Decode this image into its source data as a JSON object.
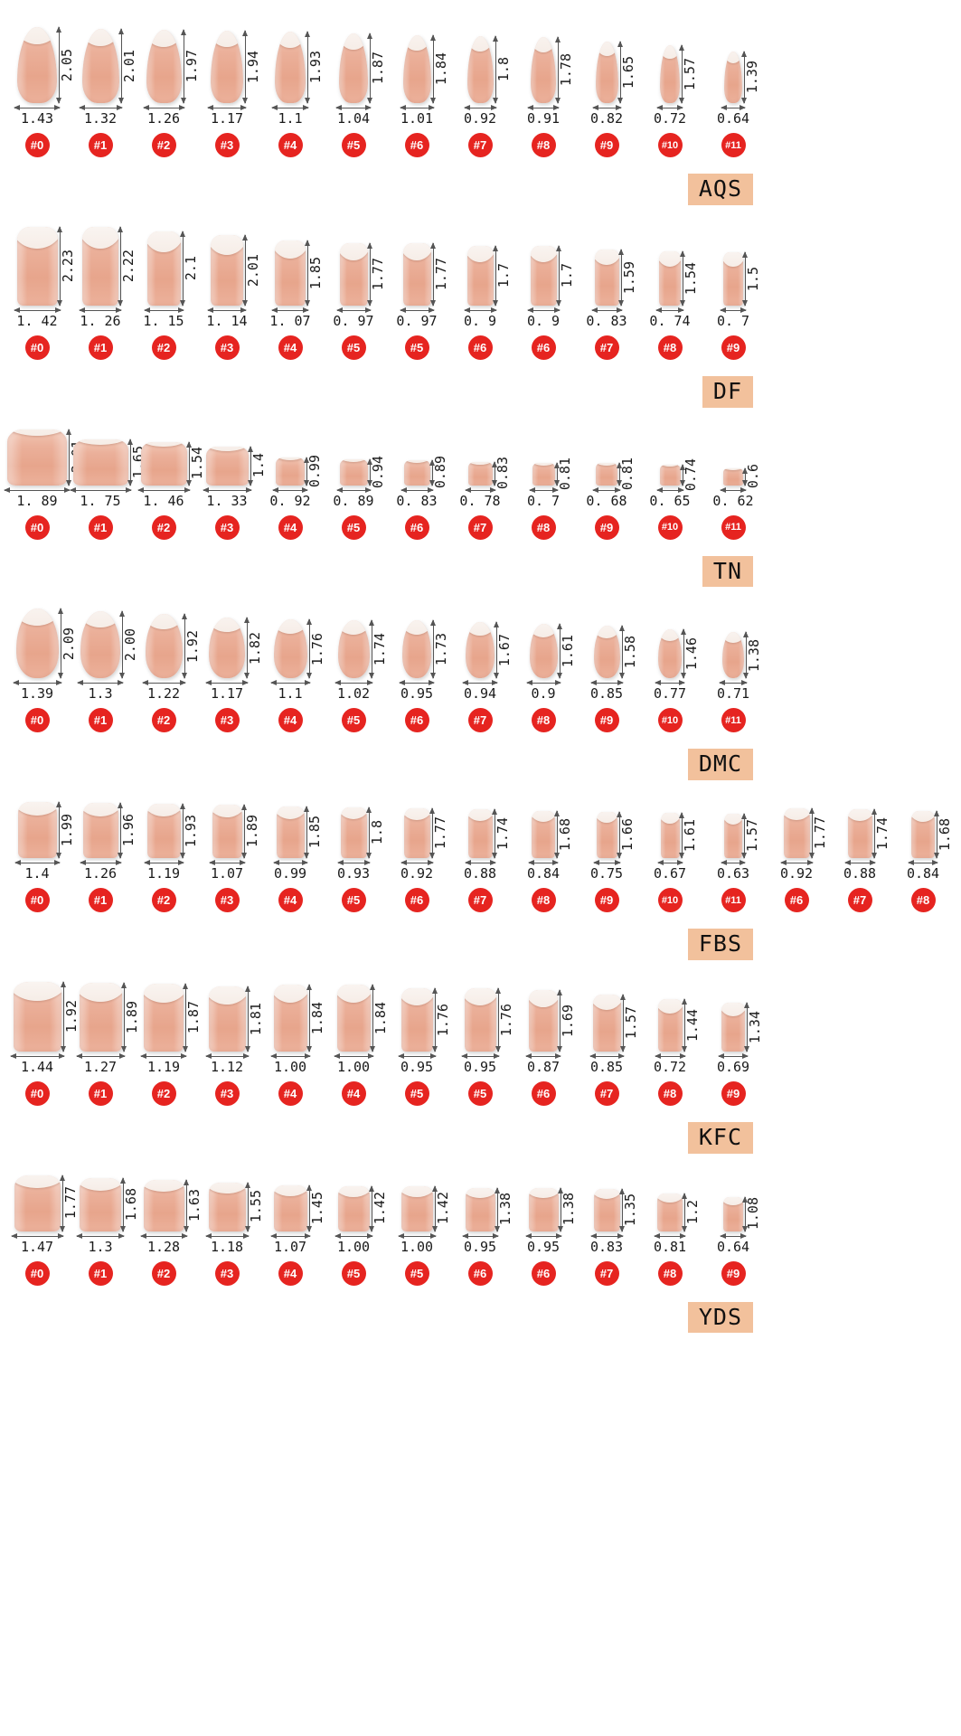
{
  "colors": {
    "badge_red": "#e62420",
    "label_bg": "#f2c19c",
    "nail_body": "#e9a88f",
    "nail_tip": "#ffffff",
    "measure_line": "#555555",
    "text": "#1a1a1a"
  },
  "rows": [
    {
      "label": "AQS",
      "shape": "almond",
      "nails": [
        {
          "h": "2.05",
          "w": "1.43",
          "badge": "#0"
        },
        {
          "h": "2.01",
          "w": "1.32",
          "badge": "#1"
        },
        {
          "h": "1.97",
          "w": "1.26",
          "badge": "#2"
        },
        {
          "h": "1.94",
          "w": "1.17",
          "badge": "#3"
        },
        {
          "h": "1.93",
          "w": "1.1",
          "badge": "#4"
        },
        {
          "h": "1.87",
          "w": "1.04",
          "badge": "#5"
        },
        {
          "h": "1.84",
          "w": "1.01",
          "badge": "#6"
        },
        {
          "h": "1.8",
          "w": "0.92",
          "badge": "#7"
        },
        {
          "h": "1.78",
          "w": "0.91",
          "badge": "#8"
        },
        {
          "h": "1.65",
          "w": "0.82",
          "badge": "#9"
        },
        {
          "h": "1.57",
          "w": "0.72",
          "badge": "#10"
        },
        {
          "h": "1.39",
          "w": "0.64",
          "badge": "#11"
        }
      ]
    },
    {
      "label": "DF",
      "shape": "square",
      "nails": [
        {
          "h": "2.23",
          "w": "1. 42",
          "badge": "#0"
        },
        {
          "h": "2.22",
          "w": "1. 26",
          "badge": "#1"
        },
        {
          "h": "2.1",
          "w": "1. 15",
          "badge": "#2"
        },
        {
          "h": "2.01",
          "w": "1. 14",
          "badge": "#3"
        },
        {
          "h": "1.85",
          "w": "1. 07",
          "badge": "#4"
        },
        {
          "h": "1.77",
          "w": "0. 97",
          "badge": "#5"
        },
        {
          "h": "1.77",
          "w": "0. 97",
          "badge": "#5"
        },
        {
          "h": "1.7",
          "w": "0. 9",
          "badge": "#6"
        },
        {
          "h": "1.7",
          "w": "0. 9",
          "badge": "#6"
        },
        {
          "h": "1.59",
          "w": "0. 83",
          "badge": "#7"
        },
        {
          "h": "1.54",
          "w": "0. 74",
          "badge": "#8"
        },
        {
          "h": "1.5",
          "w": "0. 7",
          "badge": "#9"
        }
      ]
    },
    {
      "label": "TN",
      "shape": "toe",
      "nails": [
        {
          "h": "2.01",
          "w": "1. 89",
          "badge": "#0"
        },
        {
          "h": "1.65",
          "w": "1. 75",
          "badge": "#1"
        },
        {
          "h": "1.54",
          "w": "1. 46",
          "badge": "#2"
        },
        {
          "h": "1.4",
          "w": "1. 33",
          "badge": "#3"
        },
        {
          "h": "0.99",
          "w": "0. 92",
          "badge": "#4"
        },
        {
          "h": "0.94",
          "w": "0. 89",
          "badge": "#5"
        },
        {
          "h": "0.89",
          "w": "0. 83",
          "badge": "#6"
        },
        {
          "h": "0.83",
          "w": "0. 78",
          "badge": "#7"
        },
        {
          "h": "0.81",
          "w": "0. 7",
          "badge": "#8"
        },
        {
          "h": "0.81",
          "w": "0. 68",
          "badge": "#9"
        },
        {
          "h": "0.74",
          "w": "0. 65",
          "badge": "#10"
        },
        {
          "h": "0.6",
          "w": "0. 62",
          "badge": "#11"
        }
      ]
    },
    {
      "label": "DMC",
      "shape": "oval",
      "nails": [
        {
          "h": "2.09",
          "w": "1.39",
          "badge": "#0"
        },
        {
          "h": "2.00",
          "w": "1.3",
          "badge": "#1"
        },
        {
          "h": "1.92",
          "w": "1.22",
          "badge": "#2"
        },
        {
          "h": "1.82",
          "w": "1.17",
          "badge": "#3"
        },
        {
          "h": "1.76",
          "w": "1.1",
          "badge": "#4"
        },
        {
          "h": "1.74",
          "w": "1.02",
          "badge": "#5"
        },
        {
          "h": "1.73",
          "w": "0.95",
          "badge": "#6"
        },
        {
          "h": "1.67",
          "w": "0.94",
          "badge": "#7"
        },
        {
          "h": "1.61",
          "w": "0.9",
          "badge": "#8"
        },
        {
          "h": "1.58",
          "w": "0.85",
          "badge": "#9"
        },
        {
          "h": "1.46",
          "w": "0.77",
          "badge": "#10"
        },
        {
          "h": "1.38",
          "w": "0.71",
          "badge": "#11"
        }
      ]
    },
    {
      "label": "FBS",
      "shape": "square-short",
      "nails": [
        {
          "h": "1.99",
          "w": "1.4",
          "badge": "#0"
        },
        {
          "h": "1.96",
          "w": "1.26",
          "badge": "#1"
        },
        {
          "h": "1.93",
          "w": "1.19",
          "badge": "#2"
        },
        {
          "h": "1.89",
          "w": "1.07",
          "badge": "#3"
        },
        {
          "h": "1.85",
          "w": "0.99",
          "badge": "#4"
        },
        {
          "h": "1.8",
          "w": "0.93",
          "badge": "#5"
        },
        {
          "h": "1.77",
          "w": "0.92",
          "badge": "#6"
        },
        {
          "h": "1.74",
          "w": "0.88",
          "badge": "#7"
        },
        {
          "h": "1.68",
          "w": "0.84",
          "badge": "#8"
        },
        {
          "h": "1.66",
          "w": "0.75",
          "badge": "#9"
        },
        {
          "h": "1.61",
          "w": "0.67",
          "badge": "#10"
        },
        {
          "h": "1.57",
          "w": "0.63",
          "badge": "#11"
        },
        {
          "h": "1.77",
          "w": "0.92",
          "badge": "#6"
        },
        {
          "h": "1.74",
          "w": "0.88",
          "badge": "#7"
        },
        {
          "h": "1.68",
          "w": "0.84",
          "badge": "#8"
        }
      ]
    },
    {
      "label": "KFC",
      "shape": "square",
      "nails": [
        {
          "h": "1.92",
          "w": "1.44",
          "badge": "#0"
        },
        {
          "h": "1.89",
          "w": "1.27",
          "badge": "#1"
        },
        {
          "h": "1.87",
          "w": "1.19",
          "badge": "#2"
        },
        {
          "h": "1.81",
          "w": "1.12",
          "badge": "#3"
        },
        {
          "h": "1.84",
          "w": "1.00",
          "badge": "#4"
        },
        {
          "h": "1.84",
          "w": "1.00",
          "badge": "#4"
        },
        {
          "h": "1.76",
          "w": "0.95",
          "badge": "#5"
        },
        {
          "h": "1.76",
          "w": "0.95",
          "badge": "#5"
        },
        {
          "h": "1.69",
          "w": "0.87",
          "badge": "#6"
        },
        {
          "h": "1.57",
          "w": "0.85",
          "badge": "#7"
        },
        {
          "h": "1.44",
          "w": "0.72",
          "badge": "#8"
        },
        {
          "h": "1.34",
          "w": "0.69",
          "badge": "#9"
        }
      ]
    },
    {
      "label": "YDS",
      "shape": "square-short",
      "nails": [
        {
          "h": "1.77",
          "w": "1.47",
          "badge": "#0"
        },
        {
          "h": "1.68",
          "w": "1.3",
          "badge": "#1"
        },
        {
          "h": "1.63",
          "w": "1.28",
          "badge": "#2"
        },
        {
          "h": "1.55",
          "w": "1.18",
          "badge": "#3"
        },
        {
          "h": "1.45",
          "w": "1.07",
          "badge": "#4"
        },
        {
          "h": "1.42",
          "w": "1.00",
          "badge": "#5"
        },
        {
          "h": "1.42",
          "w": "1.00",
          "badge": "#5"
        },
        {
          "h": "1.38",
          "w": "0.95",
          "badge": "#6"
        },
        {
          "h": "1.38",
          "w": "0.95",
          "badge": "#6"
        },
        {
          "h": "1.35",
          "w": "0.83",
          "badge": "#7"
        },
        {
          "h": "1.2",
          "w": "0.81",
          "badge": "#8"
        },
        {
          "h": "1.08",
          "w": "0.64",
          "badge": "#9"
        }
      ]
    }
  ]
}
